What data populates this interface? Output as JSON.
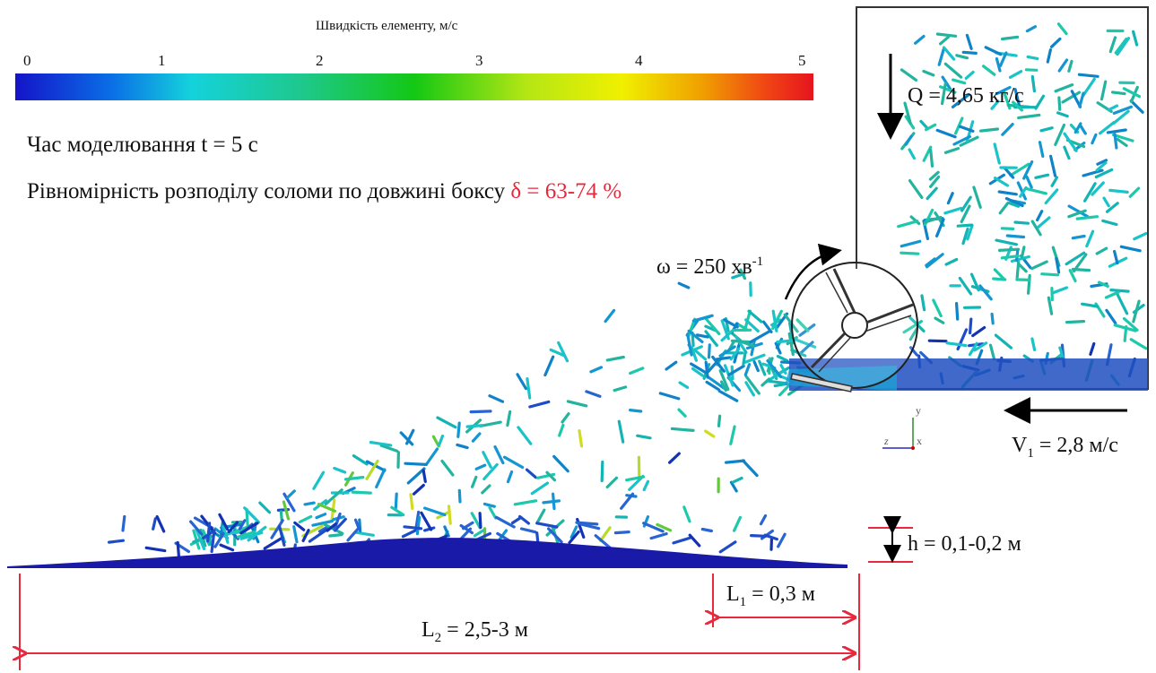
{
  "colorbar": {
    "title": "Швидкість елементу, м/с",
    "ticks": [
      "0",
      "1",
      "2",
      "3",
      "4",
      "5"
    ],
    "gradient": [
      "#1414c8",
      "#0a6ee6",
      "#14d2dc",
      "#1ec88c",
      "#14c814",
      "#b4e614",
      "#f0f000",
      "#f0a000",
      "#f04614",
      "#e6141e"
    ]
  },
  "info": {
    "time_text": "Час моделювання t = 5 с",
    "uniformity_text": "Рівномірність розподілу соломи по довжині боксу ",
    "uniformity_value": "δ = 63-74 %"
  },
  "params": {
    "flow": "Q = 4,65 кг/с",
    "omega_main": "ω = 250 хв",
    "omega_sup": "-1",
    "velocity_main": "V",
    "velocity_sub": "1",
    "velocity_rest": " = 2,8 м/с",
    "height": "h = 0,1-0,2 м",
    "l1_main": "L",
    "l1_sub": "1",
    "l1_rest": " = 0,3 м",
    "l2_main": "L",
    "l2_sub": "2",
    "l2_rest": " = 2,5-3 м"
  },
  "axes": {
    "y": "y",
    "z": "z",
    "x": "x"
  },
  "colors": {
    "dimension_red": "#e8283c",
    "pile_blue": "#1a1aa8"
  }
}
